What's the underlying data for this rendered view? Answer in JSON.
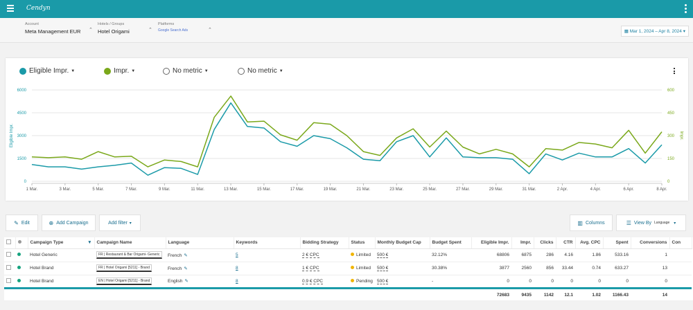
{
  "header": {
    "logo": "Cendyn"
  },
  "filters": {
    "account": {
      "label": "Account",
      "value": "Meta Management EUR"
    },
    "hotels": {
      "label": "Hotels / Groups",
      "value": "Hotel Origami"
    },
    "platforms": {
      "label": "Platforms",
      "value": "Google Search Ads"
    },
    "date_range": "Mar 1, 2024 – Apr 8, 2024"
  },
  "metrics": [
    {
      "label": "Eligible Impr.",
      "color": "#1a9aa8"
    },
    {
      "label": "Impr.",
      "color": "#7aa81a"
    },
    {
      "label": "No metric"
    },
    {
      "label": "No metric"
    }
  ],
  "chart_data": {
    "type": "line",
    "x": [
      "1 Mar.",
      "2 Mar.",
      "3 Mar.",
      "4 Mar.",
      "5 Mar.",
      "6 Mar.",
      "7 Mar.",
      "8 Mar.",
      "9 Mar.",
      "10 Mar.",
      "11 Mar.",
      "12 Mar.",
      "13 Mar.",
      "14 Mar.",
      "15 Mar.",
      "16 Mar.",
      "17 Mar.",
      "18 Mar.",
      "19 Mar.",
      "20 Mar.",
      "21 Mar.",
      "22 Mar.",
      "23 Mar.",
      "24 Mar.",
      "25 Mar.",
      "26 Mar.",
      "27 Mar.",
      "28 Mar.",
      "29 Mar.",
      "30 Mar.",
      "31 Mar.",
      "1 Apr.",
      "2 Apr.",
      "3 Apr.",
      "4 Apr.",
      "5 Apr.",
      "6 Apr.",
      "7 Apr.",
      "8 Apr."
    ],
    "x_ticks": [
      "1 Mar.",
      "3 Mar.",
      "5 Mar.",
      "7 Mar.",
      "9 Mar.",
      "11 Mar.",
      "13 Mar.",
      "15 Mar.",
      "17 Mar.",
      "19 Mar.",
      "21 Mar.",
      "23 Mar.",
      "25 Mar.",
      "27 Mar.",
      "29 Mar.",
      "31 Mar.",
      "2 Apr.",
      "4 Apr.",
      "6 Apr.",
      "8 Apr."
    ],
    "series": [
      {
        "name": "Eligible Impr.",
        "axis": "left",
        "color": "#1a9aa8",
        "values": [
          1100,
          950,
          950,
          800,
          950,
          1050,
          1200,
          400,
          900,
          850,
          450,
          3400,
          5150,
          3600,
          3500,
          2600,
          2300,
          3000,
          2800,
          2200,
          1450,
          1350,
          2600,
          3000,
          1600,
          2850,
          1600,
          1550,
          1550,
          1450,
          500,
          1800,
          1400,
          1850,
          1600,
          1600,
          2150,
          1200,
          2400
        ]
      },
      {
        "name": "Impr.",
        "axis": "right",
        "color": "#7aa81a",
        "values": [
          160,
          155,
          160,
          145,
          195,
          160,
          165,
          95,
          140,
          130,
          95,
          420,
          560,
          390,
          395,
          305,
          270,
          385,
          375,
          300,
          195,
          170,
          285,
          345,
          225,
          330,
          225,
          180,
          210,
          180,
          95,
          215,
          205,
          255,
          245,
          220,
          335,
          185,
          325
        ]
      }
    ],
    "ylabel_left": "Eligible Impr.",
    "ylabel_right": "Impr.",
    "ylim_left": [
      0,
      6000
    ],
    "yticks_left": [
      "0",
      "1500",
      "3000",
      "4500",
      "6000"
    ],
    "ylim_right": [
      0,
      600
    ],
    "yticks_right": [
      "0",
      "150",
      "300",
      "450",
      "600"
    ],
    "grid": "horizontal"
  },
  "toolbar": {
    "edit": "Edit",
    "add_campaign": "Add Campaign",
    "add_filter": "Add filter",
    "columns": "Columns",
    "view_by": "View By",
    "view_by_value": "Language"
  },
  "table": {
    "headers": [
      "Campaign Type",
      "Campaign Name",
      "Language",
      "Keywords",
      "Bidding Strategy",
      "Status",
      "Monthly Budget Cap",
      "Budget Spent",
      "Eligible Impr.",
      "Impr.",
      "Clicks",
      "CTR",
      "Avg. CPC",
      "Spent",
      "Conversions",
      "Con"
    ],
    "rows": [
      {
        "type": "Hotel Generic",
        "name": "FR | Restaurant & Bar Origami- Generic",
        "language": "French",
        "keywords": "5",
        "bidding": "2 € CPC",
        "status": "Limited",
        "budget_cap": "500 €",
        "budget_spent": "32.12%",
        "elig": "68806",
        "impr": "6875",
        "clicks": "286",
        "ctr": "4.16",
        "cpc": "1.86",
        "spent": "533.16",
        "conv": "1"
      },
      {
        "type": "Hotel Brand",
        "name": "FR | Hotel Origami [5211] - Brand",
        "language": "French",
        "keywords": "8",
        "bidding": "1 € CPC",
        "status": "Limited",
        "budget_cap": "500 €",
        "budget_spent": "30.38%",
        "elig": "3877",
        "impr": "2560",
        "clicks": "856",
        "ctr": "33.44",
        "cpc": "0.74",
        "spent": "633.27",
        "conv": "13"
      },
      {
        "type": "Hotel Brand",
        "name": "EN | Hotel Origami [5211] - Brand",
        "language": "English",
        "keywords": "8",
        "bidding": "0.9 € CPC",
        "status": "Pending",
        "budget_cap": "500 €",
        "budget_spent": "-",
        "elig": "0",
        "impr": "0",
        "clicks": "0",
        "ctr": "0",
        "cpc": "0",
        "spent": "0",
        "conv": "0"
      }
    ],
    "totals": {
      "elig": "72683",
      "impr": "9435",
      "clicks": "1142",
      "ctr": "12.1",
      "cpc": "1.02",
      "spent": "1166.43",
      "conv": "14"
    }
  }
}
